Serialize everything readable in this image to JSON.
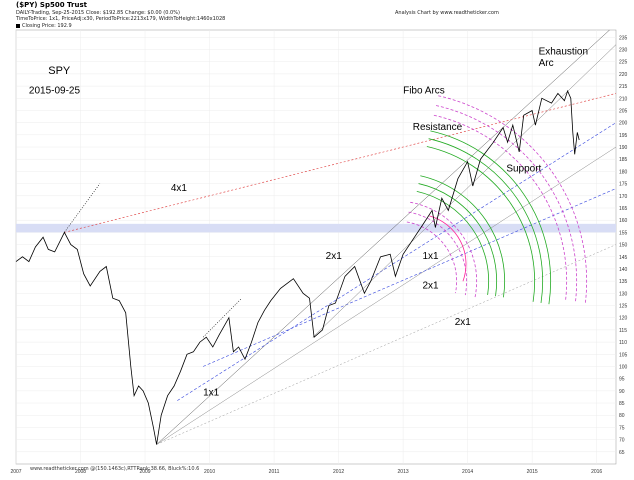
{
  "header": {
    "title": "($PY) Sp500 Trust",
    "line2": "DAILY-Trading,  Sep-25-2015   Close: $192.85   Change: $0.00   (0.0%)",
    "line3": "TimeToPrice: 1x1,  PriceAdj:x30,  PeriodToPrice:2213x179,  WidthToHeight:1460x1028",
    "right": "Analysis Chart by www.readtheticker.com",
    "legend": "Closing Price: 192.9"
  },
  "footer": "www.readtheticker.com    @(150.1463c),RTTRank:38.66, Bluck%:10.6",
  "chart_data": {
    "type": "line",
    "title": "SPY",
    "subtitle": "2015-09-25",
    "series": [
      {
        "values": [
          [
            2007.0,
            143
          ],
          [
            2007.1,
            145
          ],
          [
            2007.2,
            143
          ],
          [
            2007.3,
            149
          ],
          [
            2007.42,
            153
          ],
          [
            2007.5,
            148
          ],
          [
            2007.6,
            147
          ],
          [
            2007.75,
            155
          ],
          [
            2007.85,
            150
          ],
          [
            2007.95,
            148
          ],
          [
            2008.05,
            138
          ],
          [
            2008.15,
            133
          ],
          [
            2008.3,
            139
          ],
          [
            2008.4,
            141
          ],
          [
            2008.5,
            128
          ],
          [
            2008.6,
            127
          ],
          [
            2008.7,
            122
          ],
          [
            2008.78,
            100
          ],
          [
            2008.83,
            88
          ],
          [
            2008.9,
            92
          ],
          [
            2008.97,
            90
          ],
          [
            2009.05,
            85
          ],
          [
            2009.13,
            75
          ],
          [
            2009.18,
            68
          ],
          [
            2009.25,
            80
          ],
          [
            2009.35,
            88
          ],
          [
            2009.45,
            92
          ],
          [
            2009.55,
            98
          ],
          [
            2009.65,
            105
          ],
          [
            2009.75,
            106
          ],
          [
            2009.85,
            110
          ],
          [
            2009.95,
            112
          ],
          [
            2010.05,
            108
          ],
          [
            2010.15,
            113
          ],
          [
            2010.3,
            120
          ],
          [
            2010.37,
            106
          ],
          [
            2010.45,
            108
          ],
          [
            2010.55,
            103
          ],
          [
            2010.65,
            110
          ],
          [
            2010.75,
            118
          ],
          [
            2010.85,
            123
          ],
          [
            2010.95,
            127
          ],
          [
            2011.1,
            132
          ],
          [
            2011.3,
            136
          ],
          [
            2011.45,
            130
          ],
          [
            2011.55,
            128
          ],
          [
            2011.62,
            112
          ],
          [
            2011.75,
            115
          ],
          [
            2011.85,
            125
          ],
          [
            2011.95,
            126
          ],
          [
            2012.1,
            137
          ],
          [
            2012.25,
            141
          ],
          [
            2012.4,
            130
          ],
          [
            2012.5,
            135
          ],
          [
            2012.65,
            145
          ],
          [
            2012.8,
            146
          ],
          [
            2012.88,
            137
          ],
          [
            2013.0,
            146
          ],
          [
            2013.15,
            152
          ],
          [
            2013.3,
            158
          ],
          [
            2013.45,
            164
          ],
          [
            2013.5,
            157
          ],
          [
            2013.6,
            169
          ],
          [
            2013.7,
            164
          ],
          [
            2013.85,
            177
          ],
          [
            2014.0,
            184
          ],
          [
            2014.08,
            174
          ],
          [
            2014.2,
            185
          ],
          [
            2014.4,
            192
          ],
          [
            2014.55,
            198
          ],
          [
            2014.62,
            192
          ],
          [
            2014.7,
            199
          ],
          [
            2014.8,
            188
          ],
          [
            2014.87,
            203
          ],
          [
            2015.0,
            205
          ],
          [
            2015.05,
            199
          ],
          [
            2015.15,
            210
          ],
          [
            2015.3,
            208
          ],
          [
            2015.4,
            212
          ],
          [
            2015.5,
            209
          ],
          [
            2015.55,
            213
          ],
          [
            2015.6,
            210
          ],
          [
            2015.63,
            196
          ],
          [
            2015.66,
            187
          ],
          [
            2015.7,
            196
          ],
          [
            2015.73,
            192.9
          ]
        ]
      }
    ],
    "xlim": [
      2007.0,
      2016.3
    ],
    "ylim": [
      60,
      238
    ],
    "xticks": [
      "2007",
      "2008",
      "2009",
      "2010",
      "2011",
      "2012",
      "2013",
      "2014",
      "2015",
      "2016"
    ],
    "yticks": [
      "65",
      "70",
      "75",
      "80",
      "85",
      "90",
      "95",
      "100",
      "105",
      "110",
      "115",
      "120",
      "125",
      "130",
      "135",
      "140",
      "145",
      "150",
      "155",
      "160",
      "165",
      "170",
      "175",
      "180",
      "185",
      "190",
      "195",
      "200",
      "205",
      "210",
      "215",
      "220",
      "225",
      "230",
      "235"
    ],
    "grid": true,
    "annotations": {
      "ticker": "SPY",
      "date": "2015-09-25",
      "exhaustion_arc": "Exhaustion\nArc",
      "fibo_arcs": "Fibo Arcs",
      "resistance": "Resistance",
      "support": "Support",
      "gann_4x1": "4x1",
      "gann_2x1_a": "2x1",
      "gann_1x1_a": "1x1",
      "gann_2x1_b": "2x1",
      "gann_2x1_c": "2x1",
      "gann_1x1_b": "1x1"
    },
    "colors": {
      "price": "#000000",
      "fibo_arc": "#22aa22",
      "exhaustion_arc": "#cc44cc",
      "arc_magenta": "#ff2299",
      "support_line": "#3344dd",
      "resistance_line": "#dd3333",
      "channel_line": "#888888",
      "highlight_band": "#d8ddf5"
    }
  }
}
